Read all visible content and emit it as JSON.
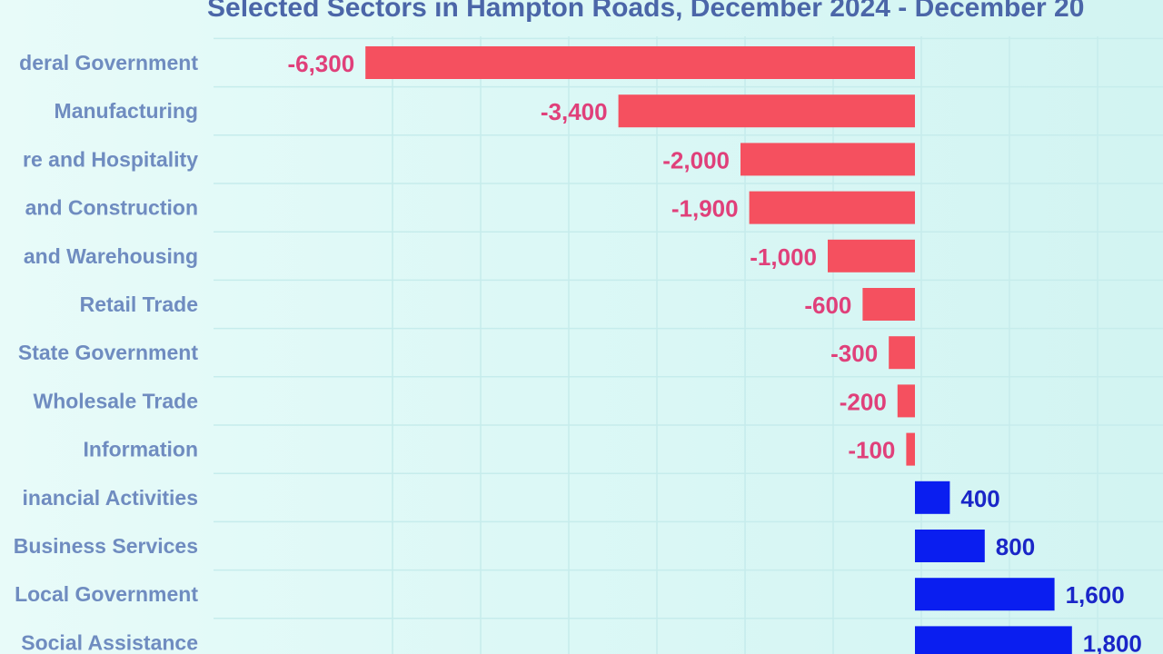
{
  "chart_data": {
    "type": "bar",
    "orientation": "horizontal",
    "title": "Selected Sectors in Hampton Roads, December 2024 - December 20",
    "categories": [
      "deral Government",
      "Manufacturing",
      "re and Hospitality",
      "and Construction",
      "and Warehousing",
      "Retail Trade",
      "State Government",
      "Wholesale Trade",
      "Information",
      "inancial Activities",
      "Business Services",
      "Local Government",
      "Social Assistance"
    ],
    "values": [
      -6300,
      -3400,
      -2000,
      -1900,
      -1000,
      -600,
      -300,
      -200,
      -100,
      400,
      800,
      1600,
      1800
    ],
    "value_labels": [
      "-6,300",
      "-3,400",
      "-2,000",
      "-1,900",
      "-1,000",
      "-600",
      "-300",
      "-200",
      "-100",
      "400",
      "800",
      "1,600",
      "1,800"
    ],
    "xlim": [
      -6300,
      2900
    ],
    "grid": true,
    "colors": {
      "negative": "#f5505f",
      "positive": "#0a1ef0",
      "negative_label": "#e0407a",
      "positive_label": "#1a26c8"
    }
  }
}
